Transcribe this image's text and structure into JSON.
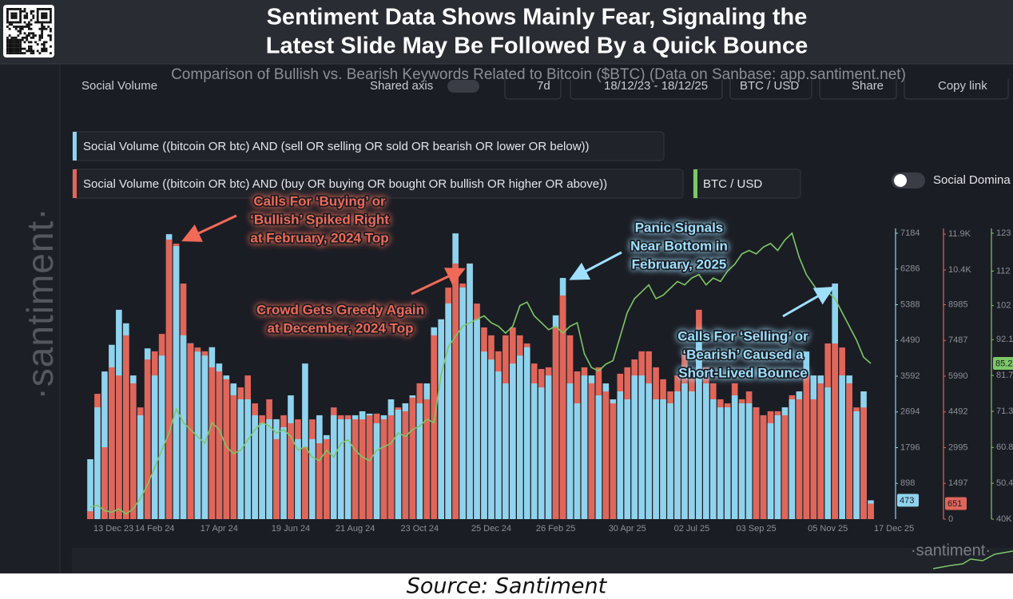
{
  "header": {
    "title": [
      "Sentiment Data Shows Mainly Fear, Signaling the",
      "Latest Slide May Be Followed By a Quick Bounce"
    ]
  },
  "toolbar": [
    "Social Volume",
    "Shared axis",
    "7d",
    "18/12/23 - 18/12/25",
    "BTC / USD",
    "Share",
    "Copy link"
  ],
  "legend_toggle": "Social Domina",
  "watermark": "·santiment·",
  "source": "Source: Santiment",
  "chart_data": {
    "type": "bar",
    "subtitle": "Comparison of Bullish vs. Bearish Keywords Related to Bitcoin ($BTC) (Data on Sanbase: app.santiment.net)",
    "categories": [
      "13 Dec 23",
      null,
      null,
      null,
      null,
      null,
      null,
      null,
      null,
      "14 Feb 24",
      null,
      null,
      null,
      null,
      null,
      null,
      null,
      null,
      "17 Apr 24",
      null,
      null,
      null,
      null,
      null,
      null,
      null,
      null,
      null,
      "19 Jun 24",
      null,
      null,
      null,
      null,
      null,
      null,
      null,
      null,
      "21 Aug 24",
      null,
      null,
      null,
      null,
      null,
      null,
      null,
      null,
      "23 Oct 24",
      null,
      null,
      null,
      null,
      null,
      null,
      null,
      null,
      null,
      "25 Dec 24",
      null,
      null,
      null,
      null,
      null,
      null,
      null,
      null,
      "26 Feb 25",
      null,
      null,
      null,
      null,
      null,
      null,
      null,
      null,
      null,
      "30 Apr 25",
      null,
      null,
      null,
      null,
      null,
      null,
      null,
      null,
      "02 Jul 25",
      null,
      null,
      null,
      null,
      null,
      null,
      null,
      null,
      "03 Sep 25",
      null,
      null,
      null,
      null,
      null,
      null,
      null,
      null,
      null,
      "05 Nov 25",
      null,
      null,
      null,
      null,
      null,
      "17 Dec 25"
    ],
    "series": [
      {
        "name": "Social Volume ((bitcoin OR btc) AND (sell OR selling OR sold OR bearish OR lower OR below))",
        "color": "#8fd3ee",
        "axis": "y",
        "values": [
          1505,
          2810,
          3710,
          4380,
          5260,
          4920,
          3610,
          2610,
          4290,
          3610,
          4110,
          7160,
          6860,
          4620,
          4420,
          4210,
          4110,
          4320,
          3910,
          3610,
          3410,
          3010,
          3010,
          2610,
          2410,
          2510,
          2510,
          2310,
          3110,
          2010,
          3910,
          2010,
          2610,
          2110,
          2610,
          2510,
          2510,
          2610,
          2710,
          2650,
          2410,
          2610,
          3010,
          2750,
          2910,
          3110,
          2910,
          3410,
          4820,
          5020,
          5420,
          7180,
          5820,
          6420,
          5020,
          4210,
          4010,
          3710,
          3410,
          3910,
          4110,
          4320,
          3410,
          3310,
          3610,
          5120,
          6060,
          3410,
          2910,
          3610,
          3610,
          3110,
          3410,
          3010,
          3210,
          3010,
          3610,
          3610,
          3410,
          3010,
          3010,
          2910,
          3210,
          3410,
          3210,
          4620,
          3410,
          3010,
          2810,
          2810,
          3110,
          2910,
          2910,
          2810,
          2610,
          2410,
          2610,
          2810,
          3010,
          3210,
          4210,
          3610,
          3610,
          3310,
          5920,
          3610,
          3610,
          2710,
          3210,
          473
        ]
      },
      {
        "name": "Social Volume ((bitcoin OR btc) AND (buy OR buying OR bought OR bullish OR higher OR above))",
        "color": "#e0665a",
        "axis": "y2",
        "values": [
          330,
          5250,
          3010,
          6360,
          6020,
          7700,
          5690,
          4680,
          6690,
          7030,
          7760,
          11710,
          11540,
          9870,
          7360,
          7190,
          7030,
          6360,
          6190,
          5860,
          5190,
          5520,
          6020,
          4850,
          4350,
          5020,
          3350,
          4350,
          4020,
          4180,
          3010,
          4180,
          3180,
          3350,
          4680,
          4350,
          4350,
          4180,
          4180,
          4350,
          4420,
          4180,
          4350,
          4680,
          4520,
          5090,
          5690,
          5020,
          7700,
          8370,
          9700,
          10710,
          9870,
          10710,
          9030,
          8030,
          7700,
          7030,
          7700,
          8030,
          7700,
          7360,
          6520,
          6290,
          6360,
          8030,
          9370,
          7700,
          6190,
          6360,
          5690,
          6360,
          5350,
          4850,
          6090,
          6360,
          6690,
          7030,
          7030,
          6360,
          5860,
          5350,
          6020,
          7030,
          6020,
          8770,
          6360,
          5690,
          5020,
          4850,
          5690,
          5020,
          5350,
          4680,
          4350,
          4520,
          4520,
          4350,
          5190,
          5020,
          6020,
          5020,
          5690,
          7360,
          7360,
          7190,
          5690,
          4680,
          4680,
          651
        ]
      },
      {
        "name": "BTC / USD",
        "color": "#7cc866",
        "axis": "y3",
        "type": "line",
        "values": [
          43.5,
          44,
          42.5,
          42,
          43,
          41.5,
          43,
          46,
          50,
          55,
          60,
          65,
          72,
          68,
          66,
          64,
          62,
          68,
          66,
          61,
          59,
          60,
          63,
          66,
          68,
          67,
          65,
          66,
          64,
          60,
          61,
          58,
          57,
          60,
          58,
          62,
          63,
          60,
          58,
          57,
          60,
          61,
          62,
          65,
          64,
          66,
          67,
          69,
          68,
          82,
          90,
          93,
          96,
          97,
          98,
          99,
          97,
          96,
          94,
          96,
          102,
          103,
          99,
          97,
          95,
          96,
          94,
          96,
          97,
          88,
          84,
          83,
          85,
          86,
          93,
          100,
          104,
          106,
          108,
          104,
          105,
          107,
          109,
          108,
          110,
          111,
          108,
          110,
          109,
          112,
          114,
          117,
          118,
          117,
          119,
          120,
          118,
          121,
          123,
          116,
          111,
          108,
          105,
          106,
          104,
          100,
          96,
          92,
          87,
          85.2
        ]
      }
    ],
    "ylim": [
      0,
      7184
    ],
    "yticks": [
      898,
      1796,
      2694,
      3592,
      4490,
      5388,
      6286,
      7184
    ],
    "y2lim": [
      0,
      11978
    ],
    "y2ticks": [
      0,
      1497,
      2995,
      4492,
      5990,
      7487,
      8985,
      {
        "value": 10440,
        "label": "10.4K"
      },
      {
        "value": 11940,
        "label": "11.9K"
      }
    ],
    "y3lim": [
      40,
      123
    ],
    "y3ticks": [
      {
        "value": 40,
        "label": "40K"
      },
      50.4,
      60.8,
      71.3,
      81.7,
      92.1,
      102,
      112,
      123
    ],
    "grid": false,
    "annotations": [
      {
        "lines": [
          "Calls For ‘Buying’ or",
          "‘Bullish’ Spiked Right",
          "at February, 2024 Top"
        ],
        "color": "#f06a57"
      },
      {
        "lines": [
          "Crowd Gets Greedy Again",
          "at December, 2024 Top"
        ],
        "color": "#f06a57"
      },
      {
        "lines": [
          "Panic Signals",
          "Near Bottom in",
          "February, 2025"
        ],
        "color": "#9fe0ff"
      },
      {
        "lines": [
          "Calls For ‘Selling’ or",
          "‘Bearish’ Caused a",
          "Short-Lived Bounce"
        ],
        "color": "#9fe0ff"
      }
    ]
  }
}
